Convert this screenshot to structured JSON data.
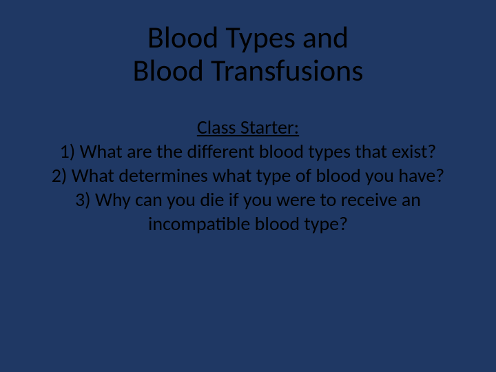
{
  "slide": {
    "background_color": "#1f3864",
    "text_color": "#000000",
    "font_family": "Calibri",
    "title": {
      "line1": "Blood Types and",
      "line2": "Blood Transfusions",
      "fontsize": 44,
      "align": "center"
    },
    "body": {
      "fontsize": 28,
      "align": "center",
      "starter_label": "Class Starter:",
      "lines": [
        "1)  What are the different blood types that exist?",
        "2)  What determines what type of blood you have?",
        "3)  Why can you die if you were to receive an",
        "incompatible blood type?"
      ]
    }
  }
}
